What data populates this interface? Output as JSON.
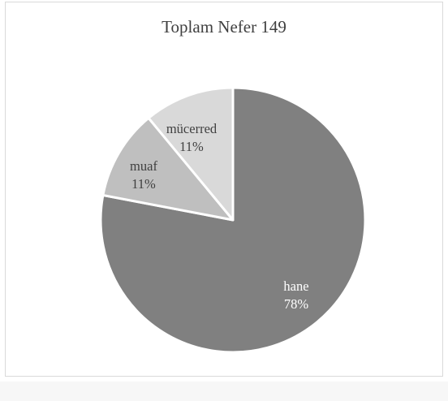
{
  "chart_data": {
    "type": "pie",
    "title": "Toplam Nefer 149",
    "slices": [
      {
        "label": "hane",
        "percent_label": "78%",
        "value": 78,
        "color": "#808080",
        "text_color": "#ffffff"
      },
      {
        "label": "muaf",
        "percent_label": "11%",
        "value": 11,
        "color": "#bfbfbf",
        "text_color": "#404040"
      },
      {
        "label": "mücerred",
        "percent_label": "11%",
        "value": 11,
        "color": "#d9d9d9",
        "text_color": "#404040"
      }
    ],
    "legend": "none"
  }
}
